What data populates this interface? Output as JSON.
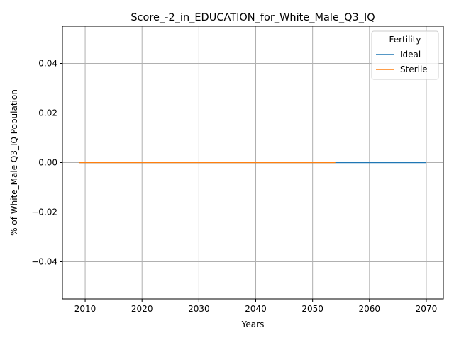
{
  "chart_data": {
    "type": "line",
    "title": "Score_-2_in_EDUCATION_for_White_Male_Q3_IQ",
    "xlabel": "Years",
    "ylabel": "% of White_Male Q3_IQ Population",
    "xlim": [
      2006,
      2073
    ],
    "ylim": [
      -0.055,
      0.055
    ],
    "xticks": [
      2010,
      2020,
      2030,
      2040,
      2050,
      2060,
      2070
    ],
    "yticks": [
      -0.04,
      -0.02,
      0.0,
      0.02,
      0.04
    ],
    "ytick_labels": [
      "−0.04",
      "−0.02",
      "0.00",
      "0.02",
      "0.04"
    ],
    "grid": true,
    "legend": {
      "title": "Fertility",
      "placement": "top-right"
    },
    "series": [
      {
        "name": "Ideal",
        "color": "#1f77b4",
        "x": [
          2009,
          2070
        ],
        "y": [
          0,
          0
        ]
      },
      {
        "name": "Sterile",
        "color": "#ff7f0e",
        "x": [
          2009,
          2054
        ],
        "y": [
          0,
          0
        ]
      }
    ]
  }
}
